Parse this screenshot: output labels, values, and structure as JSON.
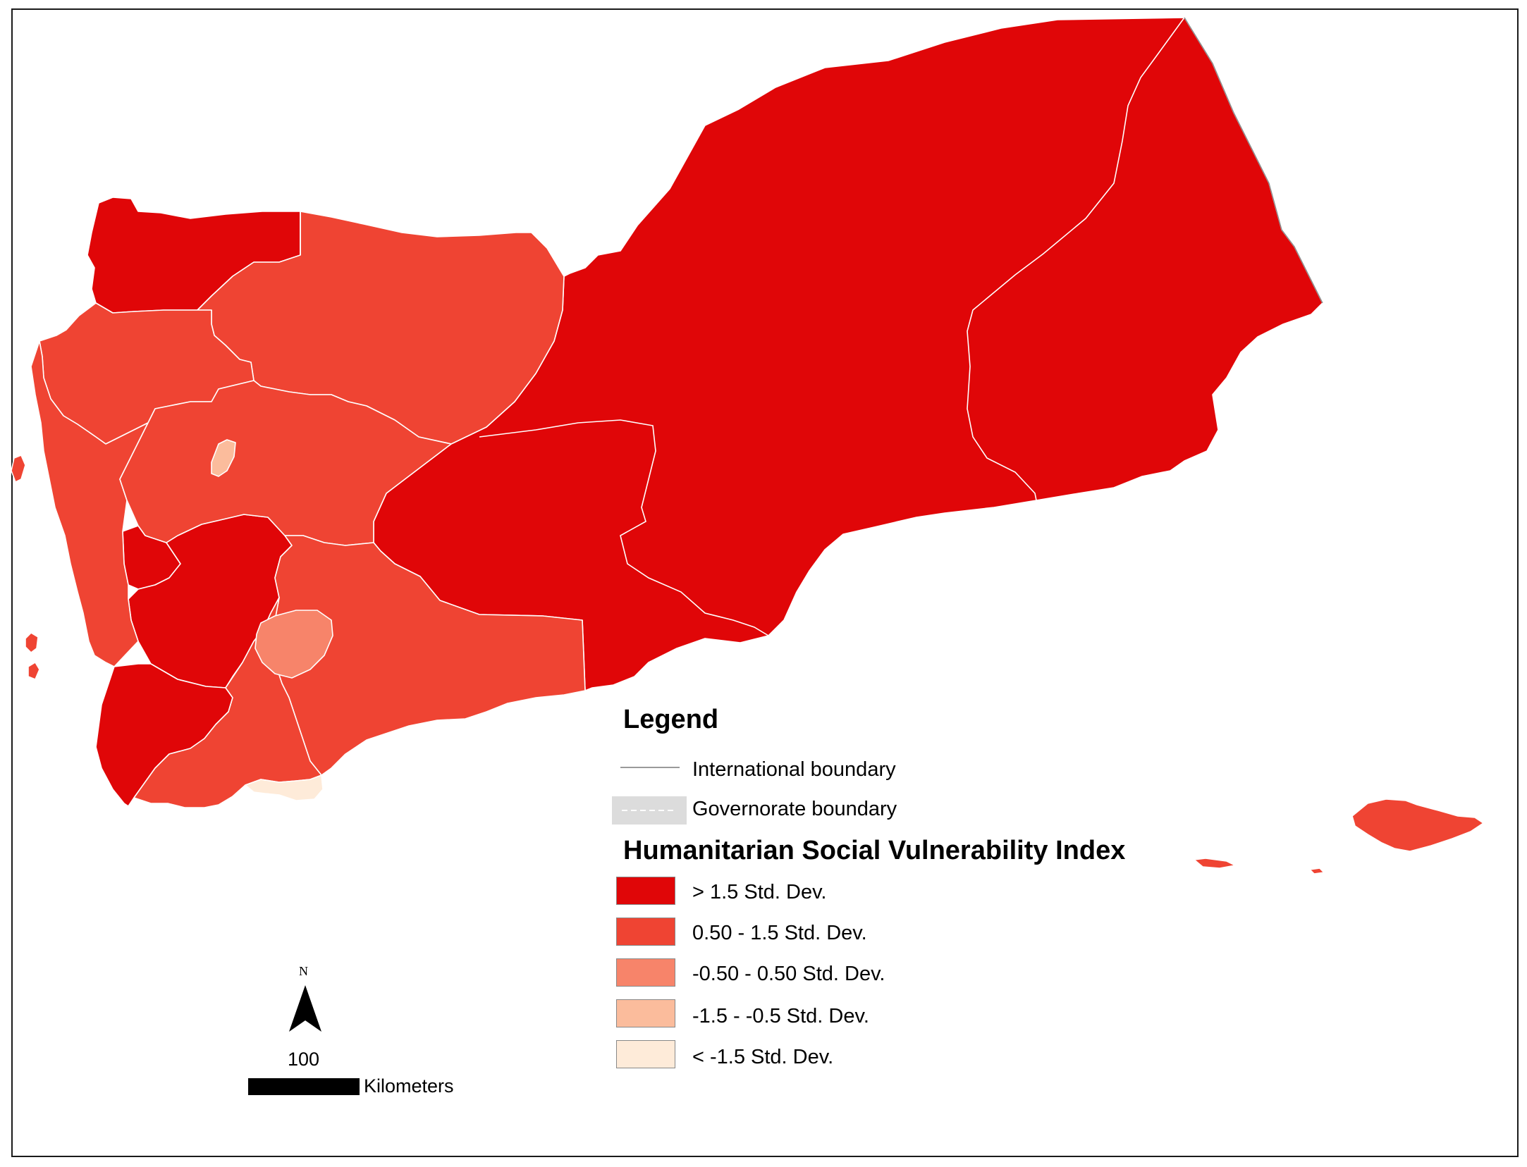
{
  "colors": {
    "class_1": "#e00608",
    "class_2": "#ef4433",
    "class_3": "#f7846a",
    "class_4": "#fbbc9c",
    "class_5": "#feebd9",
    "governorate_line": "#ffffff",
    "international_line": "#9a9a9a"
  },
  "legend": {
    "title": "Legend",
    "international_boundary": "International boundary",
    "governorate_boundary": "Governorate boundary",
    "index_title": "Humanitarian Social Vulnerability Index",
    "classes": [
      {
        "label": "> 1.5 Std. Dev.",
        "color": "#e00608"
      },
      {
        "label": "0.50 - 1.5 Std. Dev.",
        "color": "#ef4433"
      },
      {
        "label": "-0.50 - 0.50 Std. Dev.",
        "color": "#f7846a"
      },
      {
        "label": "-1.5 - -0.5 Std. Dev.",
        "color": "#fbbc9c"
      },
      {
        "label": "< -1.5 Std. Dev.",
        "color": "#feebd9"
      }
    ]
  },
  "north_arrow": {
    "label": "N",
    "icon": "north-arrow-icon"
  },
  "scale_bar": {
    "value": "100",
    "unit": "Kilometers"
  }
}
